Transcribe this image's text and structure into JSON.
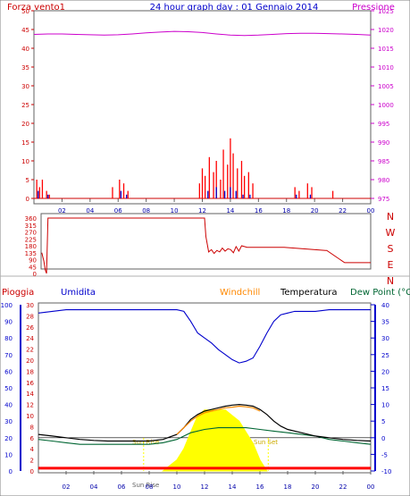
{
  "header": {
    "left_label": "Forza vento1",
    "title": "24 hour graph day : 01 Gennaio 2014",
    "right_label": "Pressione"
  },
  "colors": {
    "wind": "#cc0000",
    "gust": "#ff0000",
    "pressure": "#cc00cc",
    "humidity": "#0000cc",
    "windchill": "#ff8800",
    "temperature": "#000000",
    "dewpoint": "#006633",
    "solar": "#ffff00",
    "rain": "#ff0000",
    "axis_blue": "#0000cc",
    "axis_red": "#cc0000"
  },
  "chart_data": [
    {
      "type": "line",
      "panel": "wind_pressure",
      "left_axis": {
        "label": "Forza vento1",
        "ticks": [
          "0",
          "5",
          "10",
          "15",
          "20",
          "25",
          "30",
          "35",
          "40",
          "45",
          "50"
        ],
        "ylim": [
          0,
          50
        ]
      },
      "right_axis": {
        "label": "Pressione",
        "ticks": [
          "975",
          "980",
          "985",
          "990",
          "995",
          "1000",
          "1005",
          "1010",
          "1015",
          "1020",
          "1025"
        ],
        "ylim": [
          975,
          1025
        ]
      },
      "x_ticks": [
        "02",
        "04",
        "06",
        "08",
        "10",
        "12",
        "14",
        "16",
        "18",
        "20",
        "22",
        "00"
      ],
      "series": [
        {
          "name": "Pressione",
          "x": [
            0,
            1,
            2,
            3,
            4,
            5,
            6,
            7,
            8,
            9,
            10,
            11,
            12,
            13,
            14,
            15,
            16,
            17,
            18,
            19,
            20,
            21,
            22,
            23,
            24
          ],
          "values": [
            1018.7,
            1018.8,
            1018.8,
            1018.7,
            1018.6,
            1018.5,
            1018.6,
            1018.8,
            1019.1,
            1019.3,
            1019.5,
            1019.4,
            1019.2,
            1018.8,
            1018.5,
            1018.4,
            1018.5,
            1018.7,
            1018.9,
            1019.0,
            1019.0,
            1018.9,
            1018.8,
            1018.7,
            1018.5
          ]
        },
        {
          "x": [
            0.2,
            0.4,
            0.6,
            0.9,
            1.1,
            5.6,
            6.1,
            6.4,
            6.7,
            11.8,
            12.0,
            12.2,
            12.5,
            12.8,
            13.0,
            13.3,
            13.5,
            13.8,
            14.0,
            14.2,
            14.5,
            14.8,
            15.0,
            15.3,
            15.6,
            18.6,
            18.9,
            19.5,
            19.8,
            21.3
          ],
          "values": [
            5,
            3,
            5,
            2,
            1,
            3,
            5,
            4,
            2,
            4,
            8,
            6,
            11,
            7,
            10,
            5,
            13,
            9,
            16,
            12,
            8,
            10,
            6,
            7,
            4,
            3,
            2,
            4,
            3,
            2
          ]
        },
        {
          "x": [
            0.3,
            1.0,
            6.2,
            6.6,
            12.4,
            13.0,
            13.6,
            14.0,
            14.4,
            14.9,
            15.4,
            18.7,
            19.7
          ],
          "values": [
            2,
            1,
            2,
            1,
            2,
            3,
            2,
            3,
            2,
            1,
            1,
            1,
            1
          ]
        }
      ]
    },
    {
      "type": "line",
      "panel": "wind_direction",
      "left_axis": {
        "ticks": [
          "0",
          "45",
          "90",
          "135",
          "180",
          "225",
          "270",
          "315",
          "360"
        ],
        "ylim": [
          0,
          360
        ]
      },
      "direction_labels": [
        "N",
        "W",
        "S",
        "E",
        "N"
      ],
      "series": [
        {
          "x": [
            0.05,
            0.2,
            0.3,
            0.4,
            0.5,
            11.9,
            12.0,
            12.2,
            12.4,
            12.6,
            12.8,
            13.0,
            13.2,
            13.4,
            13.6,
            13.8,
            14.0,
            14.2,
            14.4,
            14.6,
            14.8,
            15.0,
            15.5,
            17.6,
            17.7,
            20.7,
            20.8,
            22.1,
            22.2,
            24.0
          ],
          "values": [
            135,
            80,
            25,
            0,
            360,
            360,
            240,
            140,
            155,
            130,
            150,
            140,
            165,
            145,
            160,
            155,
            135,
            175,
            145,
            180,
            175,
            170,
            170,
            170,
            170,
            150,
            150,
            70,
            70,
            70
          ]
        }
      ]
    },
    {
      "type": "line",
      "panel": "rain_humidity_temperature",
      "legend": [
        "Pioggia",
        "Umidita",
        "Windchill",
        "Temperatura",
        "Dew Point (°C"
      ],
      "left_axis_humidity": {
        "ticks": [
          "0",
          "10",
          "20",
          "30",
          "40",
          "50",
          "60",
          "70",
          "80",
          "90",
          "100"
        ],
        "ylim": [
          0,
          100
        ]
      },
      "left_axis_rain": {
        "ticks": [
          "0",
          "2",
          "4",
          "6",
          "8",
          "10",
          "12",
          "14",
          "16",
          "18",
          "20",
          "22",
          "24",
          "26",
          "28",
          "30"
        ],
        "ylim": [
          0,
          30
        ]
      },
      "right_axis_temp": {
        "ticks": [
          "-10",
          "-5",
          "0",
          "5",
          "10",
          "15",
          "20",
          "25",
          "30",
          "35",
          "40"
        ],
        "ylim": [
          -10,
          40
        ]
      },
      "annotations": [
        "Sun Rise",
        "Sun Set",
        "Sun Rise"
      ],
      "x_ticks": [
        "02",
        "04",
        "06",
        "08",
        "10",
        "12",
        "14",
        "16",
        "18",
        "20",
        "22",
        "00"
      ],
      "series": [
        {
          "name": "Umidita",
          "x": [
            0,
            1,
            2,
            3,
            4,
            5,
            6,
            7,
            8,
            9,
            10,
            10.5,
            11,
            11.5,
            12,
            12.5,
            13,
            13.5,
            14,
            14.5,
            15,
            15.5,
            16,
            16.5,
            17,
            17.5,
            18,
            18.5,
            19,
            20,
            21,
            22,
            23,
            24
          ],
          "values": [
            95,
            96,
            97,
            97,
            97,
            97,
            97,
            97,
            97,
            97,
            97,
            96,
            90,
            83,
            80,
            77,
            73,
            70,
            67,
            65,
            66,
            68,
            75,
            83,
            90,
            94,
            95,
            96,
            96,
            96,
            97,
            97,
            97,
            97
          ]
        },
        {
          "name": "Temperatura",
          "x": [
            0,
            1,
            2,
            3,
            4,
            5,
            6,
            7,
            8,
            9,
            10,
            10.5,
            11,
            11.5,
            12,
            12.5,
            13,
            13.5,
            14,
            14.5,
            15,
            15.5,
            16,
            16.5,
            17,
            17.5,
            18,
            19,
            20,
            21,
            22,
            23,
            24
          ],
          "values": [
            1,
            0.5,
            0,
            -0.5,
            -0.8,
            -1,
            -1,
            -1,
            -1,
            -0.5,
            1,
            3,
            5.5,
            7,
            8,
            8.5,
            9,
            9.5,
            9.8,
            10,
            9.8,
            9.5,
            8.5,
            7,
            5,
            3.5,
            2.5,
            1.5,
            0.5,
            0,
            -0.5,
            -0.8,
            -1
          ]
        },
        {
          "name": "Windchill",
          "x": [
            10,
            10.5,
            11,
            11.5,
            12,
            12.5,
            13,
            13.5,
            14,
            14.5,
            15,
            15.5,
            16
          ],
          "values": [
            1,
            3,
            5,
            6.5,
            7.5,
            8,
            8.5,
            9,
            9.2,
            9.5,
            9.3,
            9,
            8
          ]
        },
        {
          "name": "Dew Point (°C",
          "x": [
            0,
            1,
            2,
            3,
            4,
            5,
            6,
            7,
            8,
            9,
            10,
            11,
            12,
            13,
            14,
            15,
            16,
            17,
            18,
            19,
            20,
            21,
            22,
            23,
            24
          ],
          "values": [
            -0.5,
            -1,
            -1.5,
            -2,
            -2,
            -2,
            -2,
            -2,
            -2,
            -1.5,
            -0.5,
            1.5,
            2.5,
            3,
            3,
            3,
            2.5,
            2,
            1.5,
            1,
            0.5,
            -0.5,
            -1,
            -1.5,
            -2
          ]
        },
        {
          "x": [
            9,
            9.5,
            10,
            10.5,
            11,
            11.5,
            12,
            12.5,
            13,
            13.5,
            14,
            14.5,
            15,
            15.5,
            16,
            16.5
          ],
          "values": [
            0,
            1,
            2,
            4,
            7,
            10,
            11,
            11,
            11,
            11,
            10,
            9,
            7,
            5,
            2,
            0
          ]
        },
        {
          "name": "Pioggia",
          "x": [
            0,
            24
          ],
          "values": [
            0.5,
            0.5
          ]
        }
      ]
    }
  ]
}
